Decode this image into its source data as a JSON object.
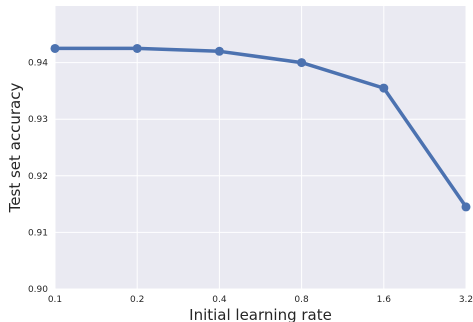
{
  "chart_data": {
    "type": "line",
    "title": "",
    "xlabel": "Initial learning rate",
    "ylabel": "Test set accuracy",
    "x_scale": "log",
    "x": [
      0.1,
      0.2,
      0.4,
      0.8,
      1.6,
      3.2
    ],
    "x_tick_labels": [
      "0.1",
      "0.2",
      "0.4",
      "0.8",
      "1.6",
      "3.2"
    ],
    "y_ticks": [
      0.9,
      0.91,
      0.92,
      0.93,
      0.94
    ],
    "y_tick_labels": [
      "0.90",
      "0.91",
      "0.92",
      "0.93",
      "0.94"
    ],
    "ylim": [
      0.9,
      0.95
    ],
    "grid": true,
    "series": [
      {
        "values": [
          0.9425,
          0.9425,
          0.942,
          0.94,
          0.9355,
          0.9145
        ],
        "color": "#4c72b0"
      }
    ],
    "colors": {
      "background": "#eaeaf2",
      "grid": "#ffffff",
      "line": "#4c72b0"
    }
  }
}
